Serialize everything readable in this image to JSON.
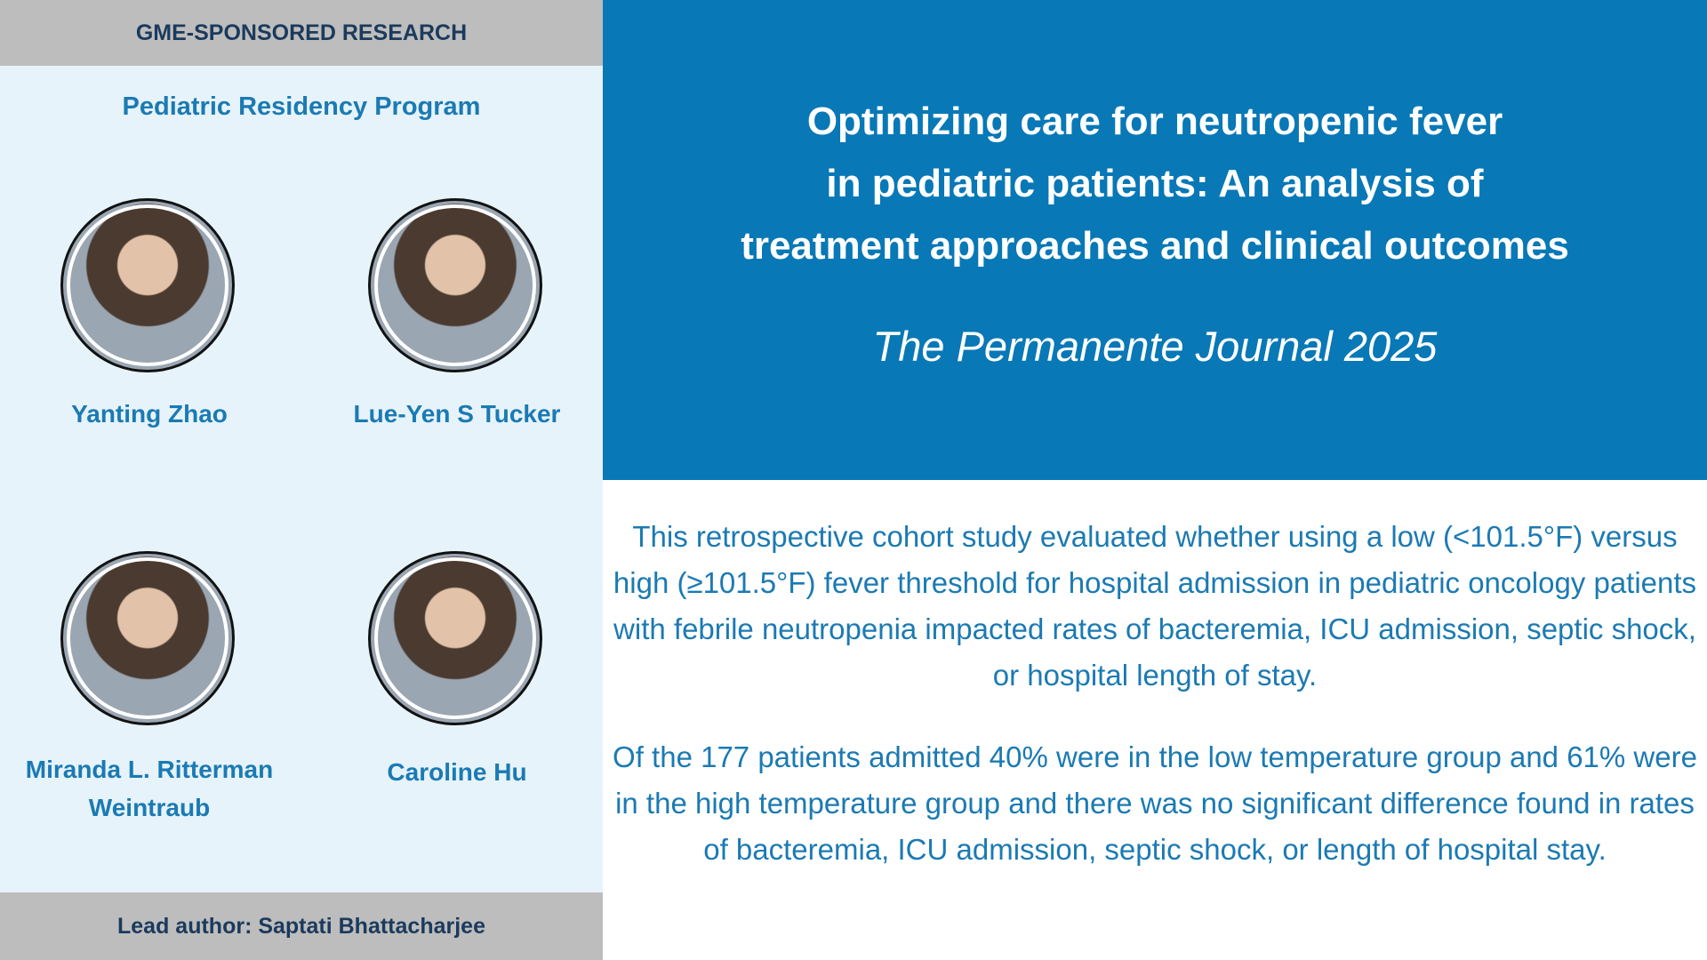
{
  "header": {
    "label": "GME-SPONSORED RESEARCH",
    "program": "Pediatric Residency Program"
  },
  "authors": [
    "Yanting Zhao",
    "Lue-Yen S Tucker",
    "Miranda L. Ritterman Weintraub",
    "Caroline Hu"
  ],
  "lead_author": "Lead author: Saptati Bhattacharjee",
  "title_lines": [
    "Optimizing care for neutropenic fever",
    "in pediatric patients: An analysis of",
    "treatment approaches and clinical outcomes"
  ],
  "journal": "The Permanente Journal 2025",
  "paragraphs": [
    "This retrospective cohort study evaluated whether using a low (<101.5°F) versus high (≥101.5°F) fever threshold for hospital admission in pediatric oncology patients with febrile neutropenia impacted rates of bacteremia, ICU admission, septic shock, or hospital length of stay.",
    "Of the 177 patients admitted 40% were in the low temperature group and 61% were in the high temperature group and there was no significant difference found in rates of bacteremia, ICU admission, septic shock, or length of hospital stay."
  ]
}
